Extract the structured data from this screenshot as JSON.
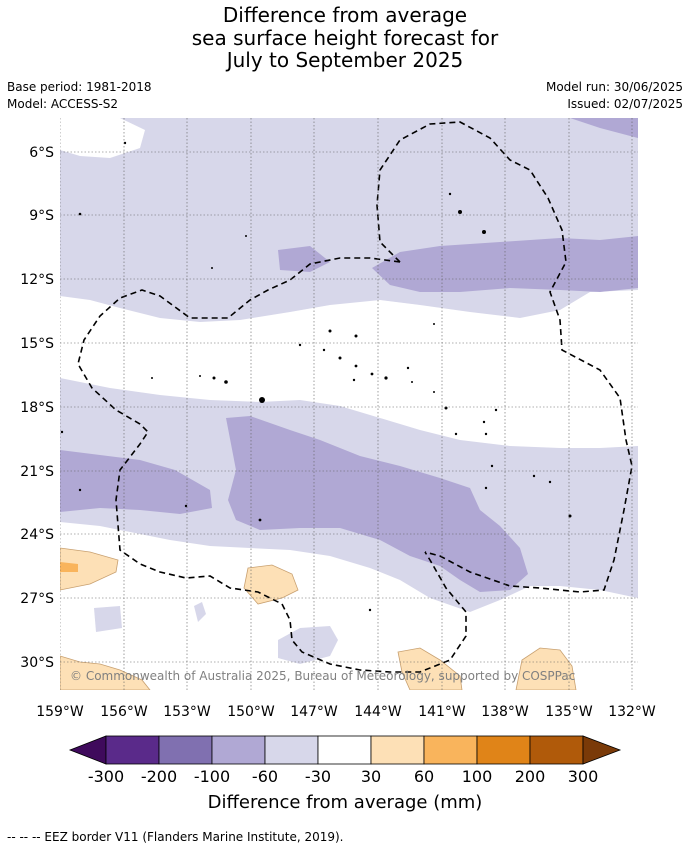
{
  "title": {
    "line1": "Difference from average",
    "line2": "sea surface height forecast for",
    "line3": "July to September 2025"
  },
  "meta": {
    "base_period": "Base period: 1981-2018",
    "model": "Model: ACCESS-S2",
    "model_run": "Model run: 30/06/2025",
    "issued": "Issued: 02/07/2025"
  },
  "map": {
    "lat_labels": [
      "6°S",
      "9°S",
      "12°S",
      "15°S",
      "18°S",
      "21°S",
      "24°S",
      "27°S",
      "30°S"
    ],
    "lon_labels": [
      "159°W",
      "156°W",
      "153°W",
      "150°W",
      "147°W",
      "144°W",
      "141°W",
      "138°W",
      "135°W",
      "132°W"
    ],
    "copyright": "© Commonwealth of Australia 2025, Bureau of Meteorology, supported by COSPPac"
  },
  "colorbar": {
    "title": "Difference from average (mm)",
    "tick_labels": [
      "-300",
      "-200",
      "-100",
      "-60",
      "-30",
      "30",
      "60",
      "100",
      "200",
      "300"
    ],
    "colors": [
      "#3f0a5c",
      "#5a2a8a",
      "#8070b0",
      "#b0a8d4",
      "#d7d7ea",
      "#ffffff",
      "#fde0b6",
      "#f9b45c",
      "#e08418",
      "#b05a0a",
      "#7a3a08"
    ]
  },
  "footnote": "--  --  -- EEZ border V11 (Flanders Marine Institute, 2019)."
}
